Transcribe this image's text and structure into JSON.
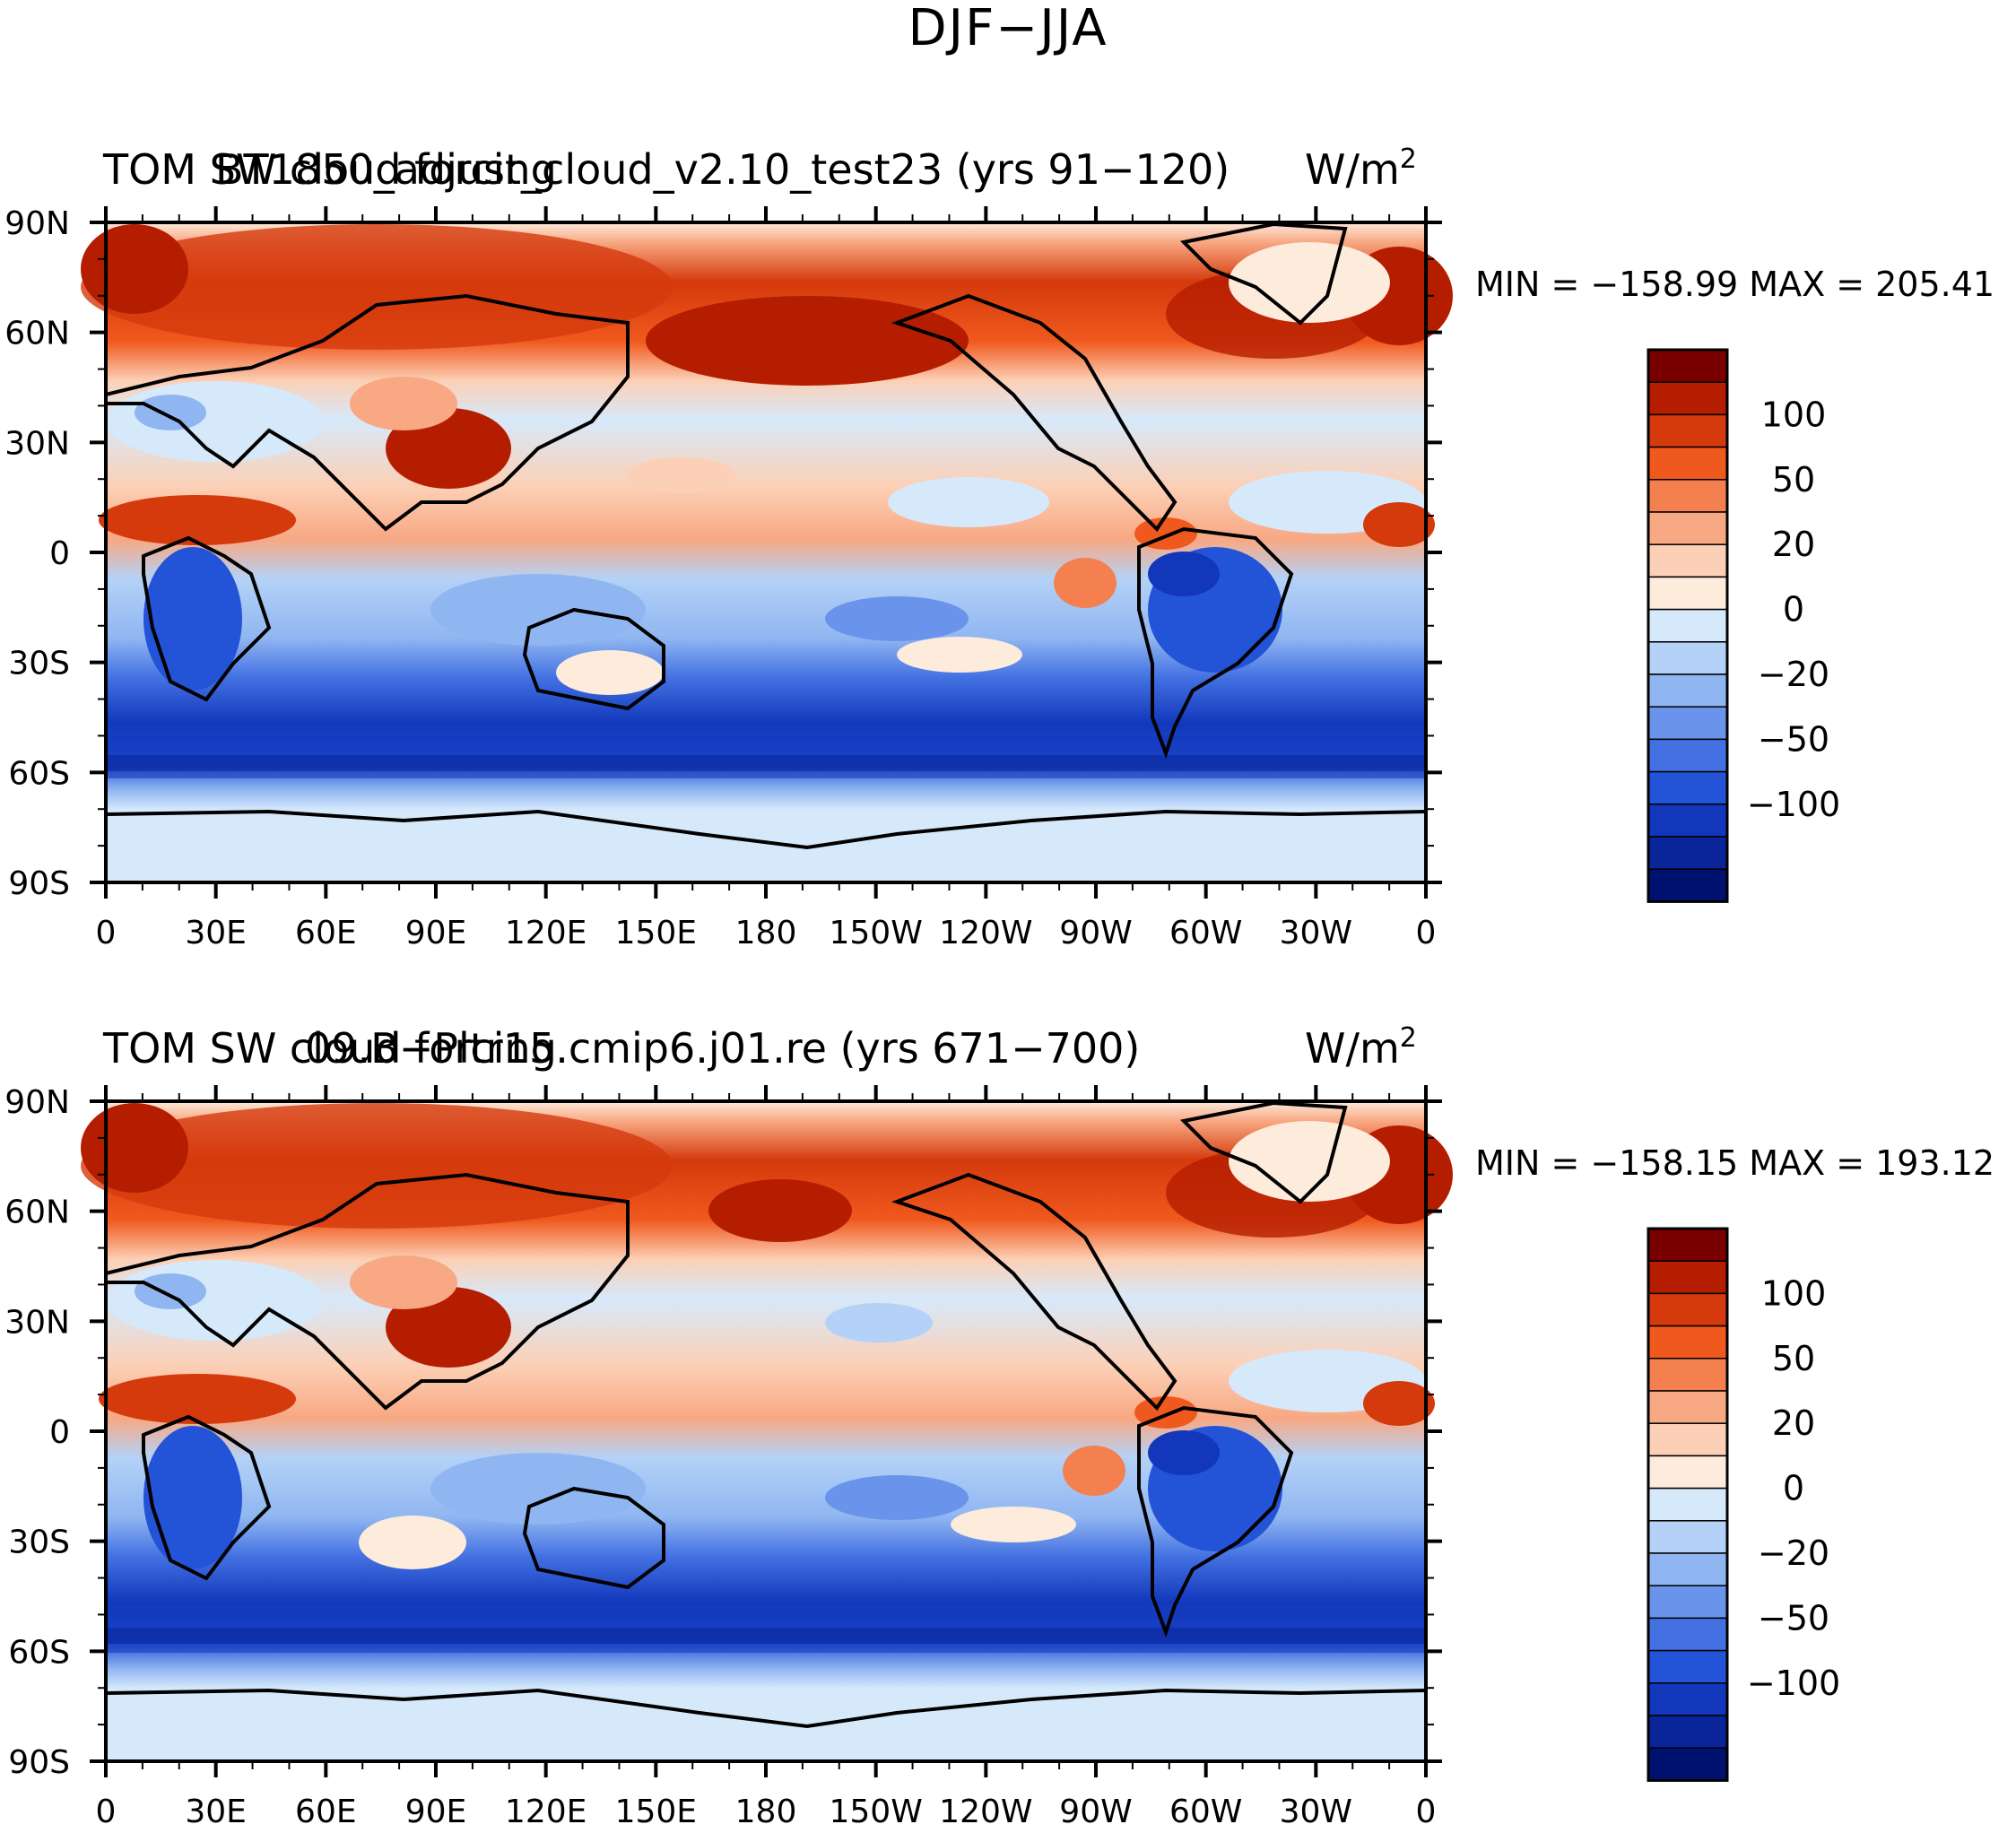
{
  "figure_title": "DJF−JJA",
  "lat_ticks": [
    "90N",
    "60N",
    "30N",
    "0",
    "30S",
    "60S",
    "90S"
  ],
  "lon_ticks": [
    "0",
    "30E",
    "60E",
    "90E",
    "120E",
    "150E",
    "180",
    "150W",
    "120W",
    "90W",
    "60W",
    "30W",
    "0"
  ],
  "colorbar": {
    "labels": [
      "100",
      "50",
      "20",
      "0",
      "−20",
      "−50",
      "−100"
    ],
    "colors": [
      "#7a0000",
      "#b51d00",
      "#d43a0c",
      "#f0591e",
      "#f48050",
      "#f8a883",
      "#fcd0b6",
      "#fdebdc",
      "#d6e9fb",
      "#b4d2f7",
      "#90b6f1",
      "#6a94eb",
      "#4371e2",
      "#2353d6",
      "#1237bb",
      "#0a249a",
      "#001270"
    ]
  },
  "panels": [
    {
      "case_label": "TOM SW cloud forcing",
      "case_name": "BT1850_adjust_cloud_v2.10_test23 (yrs 91−120)",
      "units": "W/m",
      "units_sup": "2",
      "stats": "MIN = −158.99  MAX = 205.41"
    },
    {
      "case_label": "TOM SW cloud forcing",
      "case_name": "09.B−Pltr15.cmip6.j01.re (yrs 671−700)",
      "units": "W/m",
      "units_sup": "2",
      "stats": "MIN = −158.15  MAX = 193.12"
    }
  ]
}
